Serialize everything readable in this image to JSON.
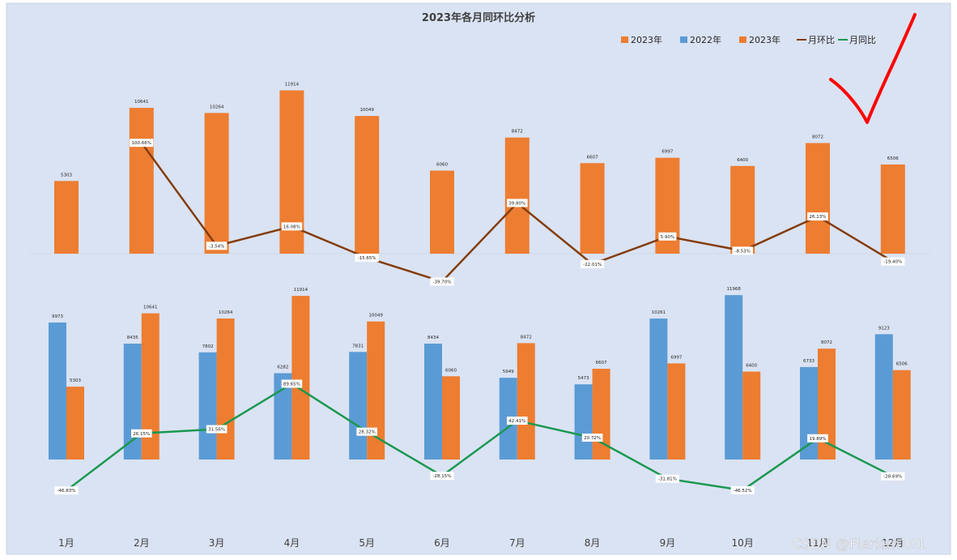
{
  "chart_data": [
    {
      "panel": "top",
      "type": "bar+line",
      "title": "2023年各月同环比分析",
      "categories": [
        "1月",
        "2月",
        "3月",
        "4月",
        "5月",
        "6月",
        "7月",
        "8月",
        "9月",
        "10月",
        "11月",
        "12月"
      ],
      "series": [
        {
          "name": "2023年",
          "kind": "bar",
          "color": "#ED7D31",
          "values": [
            5303,
            10641,
            10264,
            11914,
            10049,
            6060,
            8472,
            6607,
            6997,
            6400,
            8072,
            6506
          ]
        },
        {
          "name": "月环比",
          "kind": "line",
          "color": "#843C0C",
          "values": [
            null,
            100.66,
            -3.54,
            16.08,
            -15.65,
            -39.7,
            39.8,
            -22.01,
            5.9,
            -8.53,
            26.13,
            -19.4
          ],
          "labels": [
            "",
            "100.66%",
            "-3.54%",
            "16.08%",
            "-15.65%",
            "-39.70%",
            "39.80%",
            "-22.01%",
            "5.90%",
            "-8.53%",
            "26.13%",
            "-19.40%"
          ]
        }
      ]
    },
    {
      "panel": "bottom",
      "type": "bar+line",
      "categories": [
        "1月",
        "2月",
        "3月",
        "4月",
        "5月",
        "6月",
        "7月",
        "8月",
        "9月",
        "10月",
        "11月",
        "12月"
      ],
      "series": [
        {
          "name": "2022年",
          "kind": "bar",
          "color": "#5B9BD5",
          "values": [
            9973,
            8435,
            7802,
            6282,
            7831,
            8434,
            5949,
            5473,
            10261,
            11968,
            6733,
            9123
          ]
        },
        {
          "name": "2023年",
          "kind": "bar",
          "color": "#ED7D31",
          "values": [
            5303,
            10641,
            10264,
            11914,
            10049,
            6060,
            8472,
            6607,
            6997,
            6400,
            8072,
            6506
          ]
        },
        {
          "name": "月同比",
          "kind": "line",
          "color": "#1A9850",
          "values": [
            -46.83,
            26.15,
            31.56,
            89.65,
            28.32,
            -28.15,
            42.41,
            20.72,
            -31.81,
            -46.52,
            19.89,
            -28.69
          ],
          "labels": [
            "-46.83%",
            "26.15%",
            "31.56%",
            "89.65%",
            "28.32%",
            "-28.15%",
            "42.41%",
            "20.72%",
            "-31.81%",
            "-46.52%",
            "19.89%",
            "-28.69%"
          ]
        }
      ]
    }
  ],
  "legend": [
    {
      "label": "2023年",
      "type": "bar",
      "color": "#ED7D31"
    },
    {
      "label": "2022年",
      "type": "bar",
      "color": "#5B9BD5"
    },
    {
      "label": "2023年",
      "type": "bar",
      "color": "#ED7D31"
    },
    {
      "label": "月环比",
      "type": "line",
      "color": "#843C0C"
    },
    {
      "label": "月同比",
      "type": "line",
      "color": "#1A9850"
    }
  ],
  "watermark": "CSDN @Flerken101",
  "annotation": "checkmark",
  "colors": {
    "background": "#DAE3F3",
    "check": "#FF0000"
  }
}
